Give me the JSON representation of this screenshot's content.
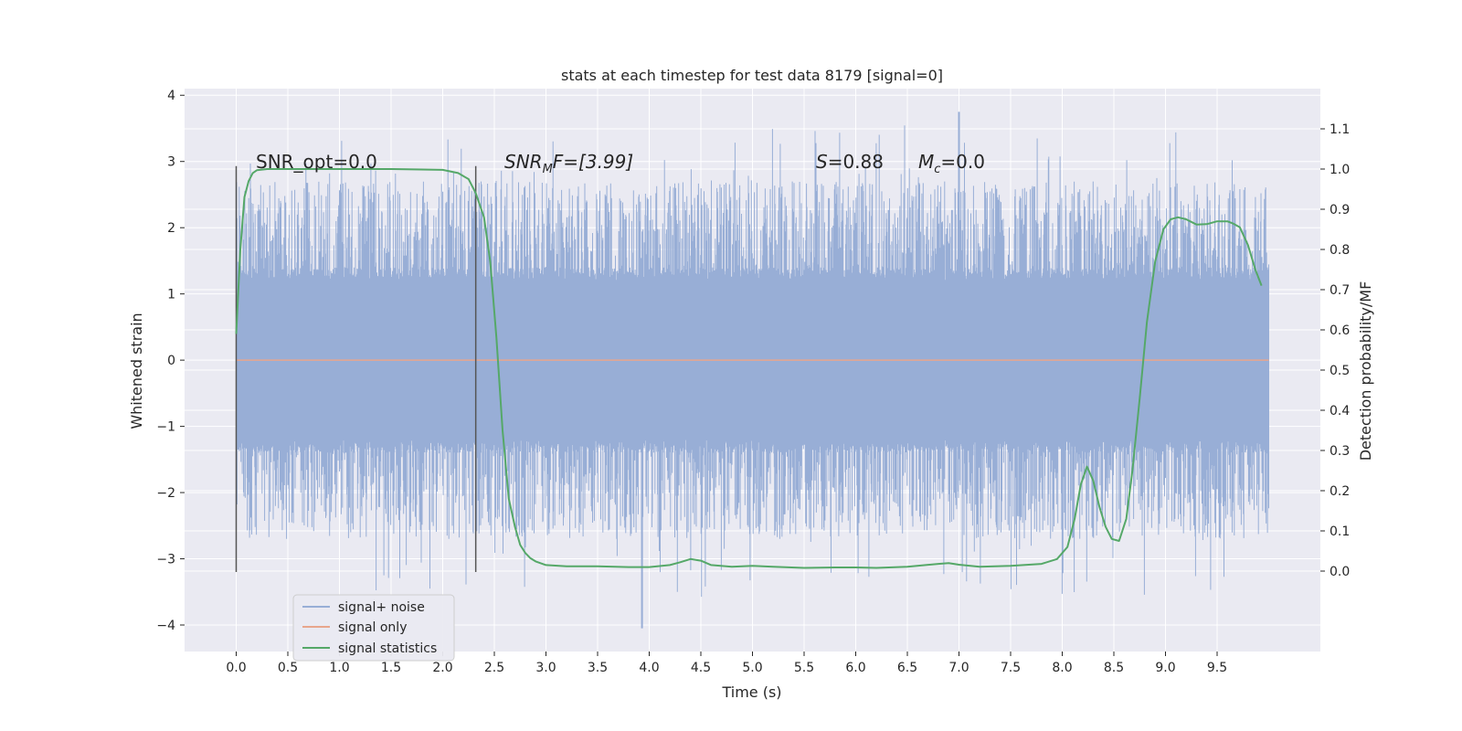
{
  "chart_data": {
    "type": "line",
    "title": "stats at each timestep for test data 8179 [signal=0]",
    "xlabel": "Time (s)",
    "ylabel": "Whitened strain",
    "ylabel_right": "Detection probability/MF",
    "xlim": [
      -0.5,
      10.5
    ],
    "ylim": [
      -4.4,
      4.1
    ],
    "ylim_right": [
      -0.2,
      1.2
    ],
    "xticks": [
      0.0,
      0.5,
      1.0,
      1.5,
      2.0,
      2.5,
      3.0,
      3.5,
      4.0,
      4.5,
      5.0,
      5.5,
      6.0,
      6.5,
      7.0,
      7.5,
      8.0,
      8.5,
      9.0,
      9.5
    ],
    "xtick_labels": [
      "0.0",
      "0.5",
      "1.0",
      "1.5",
      "2.0",
      "2.5",
      "3.0",
      "3.5",
      "4.0",
      "4.5",
      "5.0",
      "5.5",
      "6.0",
      "6.5",
      "7.0",
      "7.5",
      "8.0",
      "8.5",
      "9.0",
      "9.5"
    ],
    "yticks": [
      -4,
      -3,
      -2,
      -1,
      0,
      1,
      2,
      3,
      4
    ],
    "ytick_labels": [
      "−4",
      "−3",
      "−2",
      "−1",
      "0",
      "1",
      "2",
      "3",
      "4"
    ],
    "yticks_right": [
      0.0,
      0.1,
      0.2,
      0.3,
      0.4,
      0.5,
      0.6,
      0.7,
      0.8,
      0.9,
      1.0,
      1.1
    ],
    "ytick_labels_right": [
      "0.0",
      "0.1",
      "0.2",
      "0.3",
      "0.4",
      "0.5",
      "0.6",
      "0.7",
      "0.8",
      "0.9",
      "1.0",
      "1.1"
    ],
    "grid": true,
    "legend_position": "lower-left",
    "annotations": {
      "snr_opt": "SNR_opt=0.0",
      "snr_mf_main": "SNR",
      "snr_mf_sub": "M",
      "snr_mf_rest": "F=[3.99]",
      "s_main": "S",
      "s_rest": "=0.88",
      "mc_main": "M",
      "mc_sub": "c",
      "mc_rest": "=0.0"
    },
    "markers_x": [
      0.0,
      2.32
    ],
    "series": [
      {
        "name": "signal+ noise",
        "color": "#98aed6",
        "x_range": [
          0.0,
          10.0
        ],
        "envelope": [
          1.2,
          2.7
        ],
        "extremes": [
          3.75,
          -4.05
        ]
      },
      {
        "name": "signal only",
        "color": "#e8a68c",
        "x": [
          0.0,
          10.0
        ],
        "y": [
          0.0,
          0.0
        ]
      },
      {
        "name": "signal statistics",
        "color": "#55a868",
        "axis": "right",
        "x": [
          0.0,
          0.04,
          0.08,
          0.12,
          0.16,
          0.2,
          0.3,
          0.5,
          1.0,
          1.5,
          2.0,
          2.15,
          2.25,
          2.32,
          2.4,
          2.46,
          2.52,
          2.58,
          2.64,
          2.7,
          2.75,
          2.8,
          2.85,
          2.9,
          3.0,
          3.2,
          3.5,
          3.8,
          4.0,
          4.2,
          4.3,
          4.4,
          4.5,
          4.6,
          4.8,
          5.0,
          5.2,
          5.5,
          5.8,
          6.0,
          6.2,
          6.5,
          6.8,
          6.9,
          7.0,
          7.2,
          7.5,
          7.8,
          7.95,
          8.05,
          8.12,
          8.18,
          8.24,
          8.3,
          8.36,
          8.42,
          8.48,
          8.55,
          8.62,
          8.68,
          8.75,
          8.82,
          8.9,
          8.98,
          9.05,
          9.12,
          9.2,
          9.3,
          9.4,
          9.5,
          9.6,
          9.65,
          9.72,
          9.8,
          9.87,
          9.93
        ],
        "y": [
          0.59,
          0.8,
          0.93,
          0.97,
          0.99,
          0.997,
          1.0,
          1.0,
          1.0,
          1.0,
          0.998,
          0.99,
          0.975,
          0.94,
          0.88,
          0.77,
          0.58,
          0.35,
          0.18,
          0.11,
          0.065,
          0.045,
          0.032,
          0.024,
          0.015,
          0.012,
          0.012,
          0.01,
          0.01,
          0.015,
          0.022,
          0.03,
          0.026,
          0.015,
          0.011,
          0.013,
          0.011,
          0.008,
          0.009,
          0.009,
          0.008,
          0.011,
          0.018,
          0.02,
          0.016,
          0.011,
          0.013,
          0.018,
          0.03,
          0.06,
          0.13,
          0.215,
          0.26,
          0.225,
          0.16,
          0.11,
          0.08,
          0.075,
          0.13,
          0.25,
          0.43,
          0.62,
          0.77,
          0.85,
          0.875,
          0.88,
          0.875,
          0.862,
          0.863,
          0.87,
          0.87,
          0.865,
          0.855,
          0.81,
          0.75,
          0.71
        ]
      }
    ]
  }
}
